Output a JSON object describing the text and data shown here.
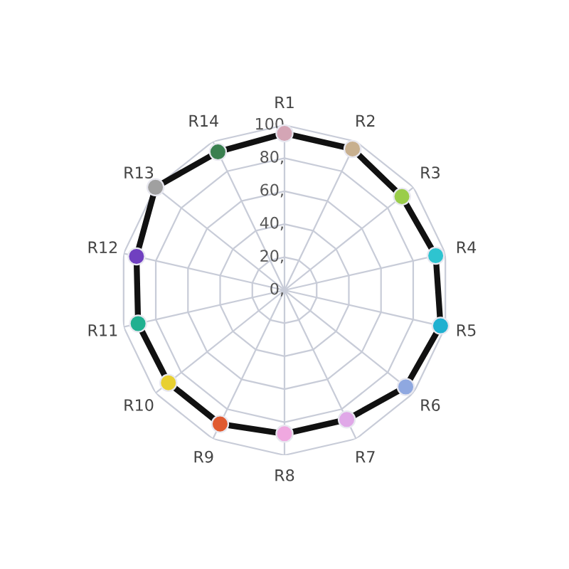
{
  "chart_data": {
    "type": "radar",
    "categories": [
      "R1",
      "R2",
      "R3",
      "R4",
      "R5",
      "R6",
      "R7",
      "R8",
      "R9",
      "R10",
      "R11",
      "R12",
      "R13",
      "R14"
    ],
    "series": [
      {
        "color": "#111111",
        "colors": [
          "#d4a5b5",
          "#c8b08f",
          "#9acd4a",
          "#2ec4d0",
          "#1fb0d0",
          "#8fa8e0",
          "#e0a8e8",
          "#f0a8e0",
          "#e05a30",
          "#e8d030",
          "#20b090",
          "#7040c0",
          "#a0a0a0",
          "#3a8050"
        ],
        "values": [
          95,
          95,
          91,
          94,
          97,
          94,
          87,
          87,
          90,
          90,
          91,
          92,
          100,
          93
        ]
      }
    ],
    "ylim": [
      0,
      100
    ],
    "yticks": [
      {
        "value": 0,
        "label": "0,"
      },
      {
        "value": 20,
        "label": "20,"
      },
      {
        "value": 40,
        "label": "40,"
      },
      {
        "value": 60,
        "label": "60,"
      },
      {
        "value": 80,
        "label": "80,"
      },
      {
        "value": 100,
        "label": "100"
      }
    ],
    "grid": true,
    "marker": "circle",
    "line_style": "solid"
  }
}
